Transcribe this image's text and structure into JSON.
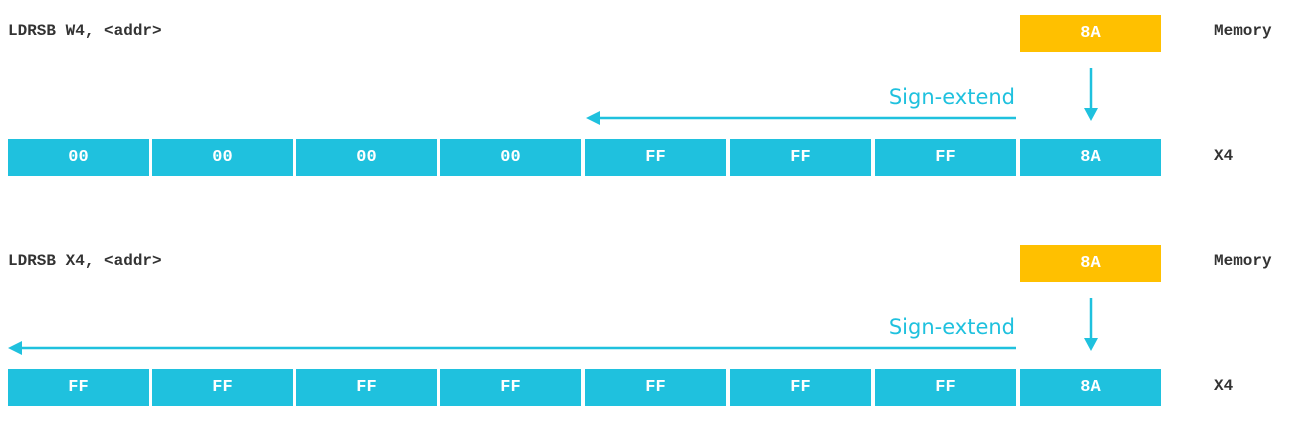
{
  "colors": {
    "register": "#1fc1de",
    "memory": "#ffc000",
    "text": "#333333",
    "arrow": "#1fc1de"
  },
  "sections": [
    {
      "instruction": "LDRSB W4, <addr>",
      "memory_label": "Memory",
      "memory_value": "8A",
      "arrow_label": "Sign-extend",
      "register_label": "X4",
      "bytes": [
        "00",
        "00",
        "00",
        "00",
        "FF",
        "FF",
        "FF",
        "8A"
      ],
      "extend_bytes": 3
    },
    {
      "instruction": "LDRSB X4, <addr>",
      "memory_label": "Memory",
      "memory_value": "8A",
      "arrow_label": "Sign-extend",
      "register_label": "X4",
      "bytes": [
        "FF",
        "FF",
        "FF",
        "FF",
        "FF",
        "FF",
        "FF",
        "8A"
      ],
      "extend_bytes": 7
    }
  ]
}
